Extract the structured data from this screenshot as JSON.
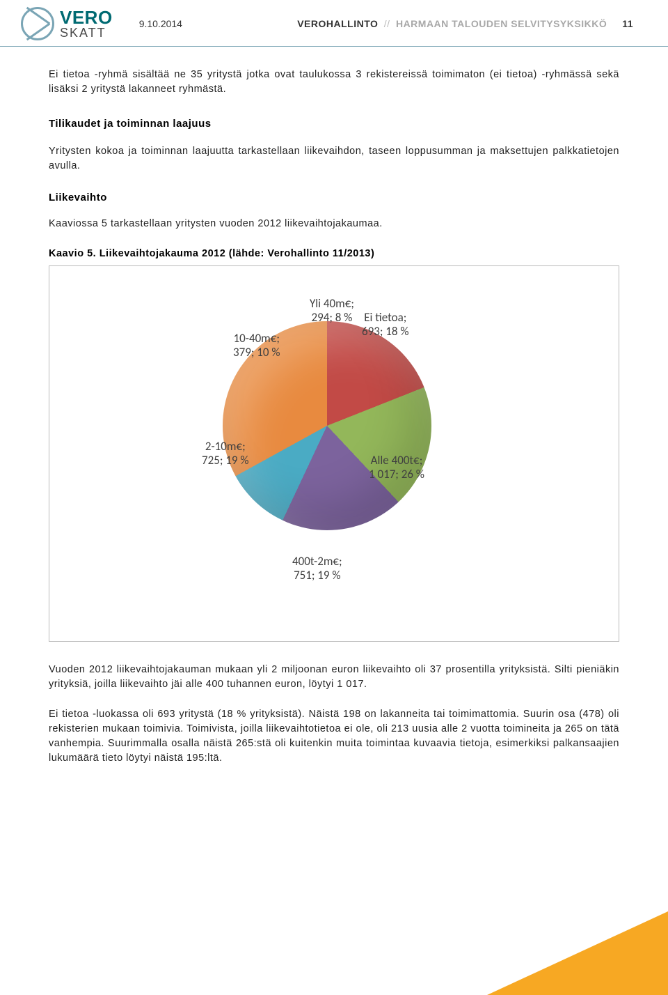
{
  "header": {
    "logo_line1": "VERO",
    "logo_line2": "SKATT",
    "date": "9.10.2014",
    "org": "VEROHALLINTO",
    "unit": "HARMAAN TALOUDEN SELVITYSYKSIKKÖ",
    "page": "11",
    "logo_color": "#7aa5b5",
    "logo_text_color": "#006a72"
  },
  "p1": "Ei tietoa -ryhmä sisältää ne 35 yritystä jotka ovat taulukossa 3 rekistereissä toimimaton (ei tietoa) -ryhmässä sekä lisäksi 2 yritystä lakanneet ryhmästä.",
  "h2": "Tilikaudet ja toiminnan laajuus",
  "p2": "Yritysten kokoa ja toiminnan laajuutta tarkastellaan liikevaihdon, taseen loppusumman ja maksettujen palkkatietojen avulla.",
  "h3": "Liikevaihto",
  "p3": "Kaaviossa 5 tarkastellaan yritysten vuoden 2012 liikevaihtojakaumaa.",
  "caption": "Kaavio 5. Liikevaihtojakauma 2012 (lähde: Verohallinto 11/2013)",
  "chart": {
    "type": "pie",
    "background": "#ffffff",
    "label_font": "Calibri",
    "label_fontsize": 17,
    "label_color": "#404040",
    "slices": [
      {
        "name": "Ei tietoa",
        "count": 693,
        "pct": 18,
        "label": "Ei tietoa;\n693; 18 %",
        "color": "#4a7cbf",
        "grad2": "#3a66a6"
      },
      {
        "name": "Alle 400t€",
        "count": 1017,
        "pct": 26,
        "label": "Alle 400t€;\n1 017; 26 %",
        "color": "#c24a46",
        "grad2": "#a53a37"
      },
      {
        "name": "400t-2m€",
        "count": 751,
        "pct": 19,
        "label": "400t-2m€;\n751; 19 %",
        "color": "#93b75a",
        "grad2": "#7a9d44"
      },
      {
        "name": "2-10m€",
        "count": 725,
        "pct": 19,
        "label": "2-10m€;\n725; 19 %",
        "color": "#7c639d",
        "grad2": "#665186"
      },
      {
        "name": "10-40m€",
        "count": 379,
        "pct": 10,
        "label": "10-40m€;\n379; 10 %",
        "color": "#4aabc4",
        "grad2": "#3a92a9"
      },
      {
        "name": "Yli 40m€",
        "count": 294,
        "pct": 8,
        "label": "Yli 40m€;\n294; 8 %",
        "color": "#e88a3f",
        "grad2": "#cf7530"
      }
    ],
    "start_angle_deg": -90
  },
  "p4": "Vuoden 2012 liikevaihtojakauman mukaan yli 2 miljoonan euron liikevaihto oli 37 prosentilla yrityksistä. Silti pieniäkin yrityksiä, joilla liikevaihto jäi alle 400 tuhannen euron, löytyi 1 017.",
  "p5": "Ei tietoa -luokassa oli 693 yritystä (18 % yrityksistä). Näistä 198 on lakanneita tai toimimattomia. Suurin osa (478) oli rekisterien mukaan toimivia. Toimivista, joilla liikevaihtotietoa ei ole, oli 213 uusia alle 2 vuotta toimineita ja 265 on tätä vanhempia. Suurimmalla osalla näistä 265:stä oli kuitenkin muita toimintaa kuvaavia tietoja, esimerkiksi palkansaajien lukumäärä tieto löytyi näistä 195:ltä.",
  "triangle_color": "#f7a823"
}
